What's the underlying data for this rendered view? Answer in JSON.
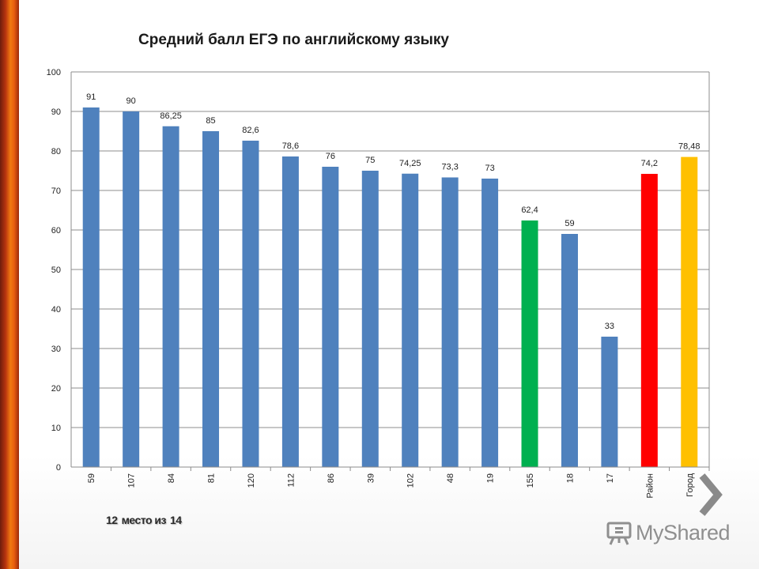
{
  "chart_data": {
    "type": "bar",
    "title": "Средний балл ЕГЭ по английскому языку",
    "categories": [
      "59",
      "107",
      "84",
      "81",
      "120",
      "112",
      "86",
      "39",
      "102",
      "48",
      "19",
      "155",
      "18",
      "17",
      "Район",
      "Город"
    ],
    "values": [
      91,
      90,
      86.25,
      85,
      82.6,
      78.6,
      76,
      75,
      74.25,
      73.3,
      73,
      62.4,
      59,
      33,
      74.2,
      78.48
    ],
    "data_labels": [
      "91",
      "90",
      "86,25",
      "85",
      "82,6",
      "78,6",
      "76",
      "75",
      "74,25",
      "73,3",
      "73",
      "62,4",
      "59",
      "33",
      "74,2",
      "78,48"
    ],
    "bar_colors": [
      "#4f81bd",
      "#4f81bd",
      "#4f81bd",
      "#4f81bd",
      "#4f81bd",
      "#4f81bd",
      "#4f81bd",
      "#4f81bd",
      "#4f81bd",
      "#4f81bd",
      "#4f81bd",
      "#00b050",
      "#4f81bd",
      "#4f81bd",
      "#ff0000",
      "#ffc000"
    ],
    "ylim": [
      0,
      100
    ],
    "yticks": [
      0,
      10,
      20,
      30,
      40,
      50,
      60,
      70,
      80,
      90,
      100
    ],
    "grid": true,
    "xlabel": "",
    "ylabel": "",
    "x_tick_rotation": -90
  },
  "footer": {
    "place_number": "12",
    "place_word": "место из",
    "place_total": "14"
  },
  "logo": {
    "text": "MyShared",
    "icon": "presentation-board-icon"
  },
  "nav": {
    "next_icon": "chevron-right-icon"
  }
}
